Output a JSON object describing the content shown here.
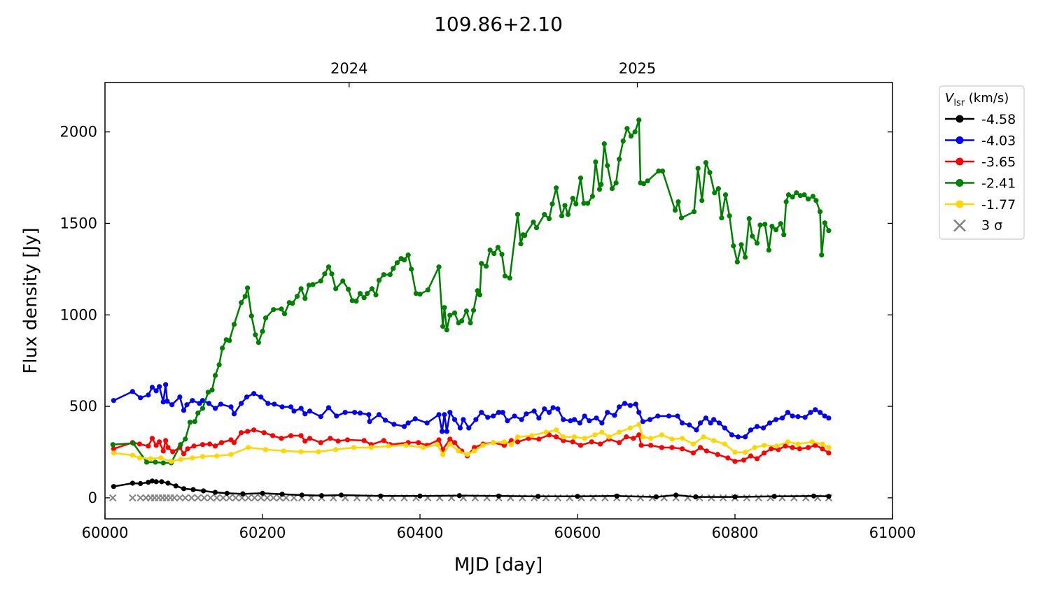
{
  "chart_data": {
    "type": "line",
    "title": "109.86+2.10",
    "xlabel": "MJD [day]",
    "ylabel": "Flux density [Jy]",
    "xlim": [
      60000,
      61000
    ],
    "ylim": [
      -115,
      2270
    ],
    "xticks": [
      60000,
      60200,
      60400,
      60600,
      60800,
      61000
    ],
    "yticks": [
      0,
      500,
      1000,
      1500,
      2000
    ],
    "top_axis": {
      "ticks": [
        {
          "mjd": 60310,
          "label": "2024"
        },
        {
          "mjd": 60676,
          "label": "2025"
        }
      ]
    },
    "grid": false,
    "legend": {
      "placement": "outside-right",
      "title_main": "V",
      "title_sub": "lsr",
      "title_unit": " (km/s)",
      "sigma_label": "3 σ"
    },
    "series": [
      {
        "name": "-4.58",
        "color": "#000000",
        "x": [
          60011,
          60035,
          60045,
          60055,
          60060,
          60065,
          60072,
          60080,
          60090,
          60100,
          60112,
          60125,
          60140,
          60155,
          60175,
          60200,
          60225,
          60250,
          60275,
          60300,
          60350,
          60400,
          60450,
          60500,
          60550,
          60600,
          60650,
          60700,
          60725,
          60750,
          60800,
          60850,
          60900,
          60919
        ],
        "y": [
          62,
          80,
          78,
          85,
          92,
          88,
          88,
          80,
          65,
          50,
          45,
          38,
          30,
          25,
          22,
          25,
          20,
          15,
          12,
          15,
          10,
          10,
          12,
          10,
          8,
          8,
          10,
          5,
          15,
          5,
          5,
          8,
          10,
          8
        ]
      },
      {
        "name": "-4.03",
        "color": "#0000ff",
        "x": [
          60011,
          60035,
          60045,
          60055,
          60060,
          60065,
          60069,
          60074,
          60077,
          60079,
          60085,
          60095,
          60100,
          60104,
          60111,
          60120,
          60124,
          60132,
          60140,
          60147,
          60160,
          60164,
          60173,
          60180,
          60189,
          60198,
          60207,
          60215,
          60225,
          60236,
          60240,
          60249,
          60254,
          60260,
          60274,
          60284,
          60294,
          60305,
          60317,
          60324,
          60335,
          60336,
          60348,
          60356,
          60367,
          60380,
          60385,
          60394,
          60409,
          60424,
          60428,
          60431,
          60434,
          60438,
          60444,
          60451,
          60455,
          60462,
          60471,
          60478,
          60486,
          60493,
          60500,
          60505,
          60511,
          60520,
          60529,
          60535,
          60545,
          60551,
          60558,
          60564,
          60569,
          60575,
          60582,
          60591,
          60596,
          60603,
          60609,
          60615,
          60624,
          60631,
          60638,
          60647,
          60653,
          60660,
          60667,
          60674,
          60678,
          60683,
          60692,
          60702,
          60716,
          60727,
          60733,
          60742,
          60751,
          60756,
          60763,
          60769,
          60773,
          60780,
          60787,
          60796,
          60804,
          60813,
          60820,
          60828,
          60836,
          60844,
          60852,
          60860,
          60867,
          60873,
          60880,
          60889,
          60896,
          60902,
          60908,
          60914,
          60919
        ],
        "y": [
          532,
          581,
          547,
          562,
          604,
          585,
          608,
          524,
          619,
          528,
          509,
          551,
          478,
          509,
          532,
          516,
          532,
          516,
          489,
          512,
          497,
          459,
          516,
          551,
          570,
          551,
          516,
          512,
          497,
          497,
          474,
          489,
          459,
          474,
          444,
          493,
          447,
          467,
          467,
          463,
          455,
          417,
          455,
          424,
          402,
          390,
          409,
          432,
          409,
          455,
          363,
          455,
          363,
          467,
          428,
          382,
          428,
          382,
          428,
          467,
          440,
          447,
          467,
          467,
          421,
          447,
          428,
          459,
          474,
          436,
          486,
          467,
          493,
          486,
          428,
          421,
          428,
          409,
          447,
          421,
          436,
          409,
          467,
          451,
          497,
          516,
          505,
          512,
          467,
          417,
          428,
          447,
          447,
          447,
          409,
          398,
          371,
          409,
          436,
          409,
          428,
          409,
          382,
          344,
          333,
          333,
          371,
          390,
          382,
          409,
          428,
          436,
          467,
          447,
          444,
          440,
          467,
          482,
          467,
          447,
          436
        ]
      },
      {
        "name": "-3.65",
        "color": "#ff0000",
        "x": [
          60011,
          60035,
          60044,
          60055,
          60060,
          60065,
          60069,
          60074,
          60077,
          60080,
          60086,
          60095,
          60100,
          60105,
          60113,
          60124,
          60133,
          60140,
          60148,
          60160,
          60164,
          60173,
          60181,
          60189,
          60202,
          60213,
          60224,
          60236,
          60249,
          60254,
          60260,
          60274,
          60286,
          60296,
          60308,
          60329,
          60338,
          60354,
          60362,
          60385,
          60398,
          60409,
          60424,
          60429,
          60438,
          60444,
          60453,
          60460,
          60469,
          60480,
          60493,
          60507,
          60516,
          60524,
          60538,
          60551,
          60564,
          60573,
          60582,
          60594,
          60604,
          60618,
          60629,
          60640,
          60653,
          60662,
          60671,
          60678,
          60681,
          60693,
          60707,
          60720,
          60733,
          60747,
          60756,
          60764,
          60778,
          60791,
          60800,
          60811,
          60820,
          60828,
          60837,
          60846,
          60855,
          60864,
          60873,
          60882,
          60893,
          60902,
          60911,
          60919
        ],
        "y": [
          268,
          302,
          294,
          283,
          325,
          287,
          306,
          256,
          313,
          275,
          252,
          275,
          241,
          268,
          283,
          291,
          294,
          283,
          302,
          317,
          302,
          356,
          363,
          371,
          356,
          340,
          325,
          340,
          340,
          310,
          325,
          302,
          325,
          310,
          317,
          313,
          291,
          313,
          291,
          302,
          302,
          287,
          317,
          264,
          321,
          302,
          256,
          229,
          275,
          294,
          302,
          287,
          313,
          306,
          325,
          321,
          344,
          333,
          313,
          306,
          287,
          306,
          294,
          321,
          302,
          333,
          325,
          344,
          287,
          287,
          275,
          275,
          268,
          245,
          275,
          256,
          237,
          218,
          199,
          206,
          229,
          214,
          245,
          268,
          264,
          283,
          275,
          268,
          275,
          287,
          268,
          245
        ]
      },
      {
        "name": "-2.41",
        "color": "#008000",
        "x": [
          60010,
          60036,
          60053,
          60064,
          60074,
          60084,
          60096,
          60102,
          60108,
          60114,
          60118,
          60124,
          60131,
          60136,
          60140,
          60145,
          60149,
          60154,
          60158,
          60164,
          60173,
          60178,
          60181,
          60186,
          60191,
          60195,
          60200,
          60204,
          60214,
          60224,
          60228,
          60234,
          60238,
          60244,
          60249,
          60254,
          60259,
          60264,
          60274,
          60279,
          60284,
          60288,
          60293,
          60302,
          60309,
          60314,
          60319,
          60324,
          60329,
          60333,
          60339,
          60344,
          60348,
          60354,
          60362,
          60366,
          60371,
          60376,
          60380,
          60385,
          60389,
          60395,
          60400,
          60410,
          60424,
          60429,
          60431,
          60434,
          60438,
          60444,
          60449,
          60453,
          60459,
          60464,
          60468,
          60473,
          60476,
          60478,
          60484,
          60489,
          60494,
          60499,
          60504,
          60508,
          60514,
          60524,
          60528,
          60531,
          60533,
          60544,
          60548,
          60558,
          60564,
          60568,
          60573,
          60580,
          60584,
          60588,
          60594,
          60598,
          60604,
          60608,
          60613,
          60619,
          60623,
          60628,
          60630,
          60634,
          60638,
          60644,
          60649,
          60653,
          60658,
          60663,
          60668,
          60673,
          60678,
          60680,
          60684,
          60689,
          60703,
          60708,
          60724,
          60728,
          60732,
          60748,
          60753,
          60758,
          60763,
          60768,
          60774,
          60779,
          60783,
          60788,
          60793,
          60798,
          60803,
          60808,
          60813,
          60818,
          60822,
          60828,
          60832,
          60838,
          60843,
          60847,
          60852,
          60858,
          60862,
          60865,
          60868,
          60873,
          60878,
          60883,
          60888,
          60893,
          60899,
          60903,
          60908,
          60910,
          60914,
          60919
        ],
        "y": [
          291,
          298,
          195,
          195,
          191,
          191,
          291,
          321,
          413,
          417,
          463,
          489,
          577,
          589,
          669,
          727,
          818,
          864,
          860,
          948,
          1067,
          1101,
          1147,
          994,
          891,
          849,
          910,
          983,
          1029,
          1032,
          1006,
          1067,
          1063,
          1101,
          1143,
          1090,
          1162,
          1166,
          1185,
          1224,
          1262,
          1224,
          1143,
          1185,
          1140,
          1078,
          1075,
          1117,
          1094,
          1117,
          1143,
          1109,
          1189,
          1220,
          1220,
          1254,
          1285,
          1308,
          1300,
          1327,
          1250,
          1117,
          1113,
          1136,
          1262,
          937,
          1040,
          918,
          998,
          1010,
          956,
          967,
          1021,
          956,
          1025,
          1132,
          1109,
          1281,
          1266,
          1354,
          1335,
          1369,
          1331,
          1212,
          1201,
          1549,
          1388,
          1438,
          1434,
          1507,
          1476,
          1549,
          1526,
          1606,
          1694,
          1541,
          1598,
          1549,
          1637,
          1606,
          1748,
          1610,
          1610,
          1648,
          1836,
          1686,
          1713,
          1935,
          1816,
          1690,
          1721,
          1851,
          1950,
          2019,
          1977,
          2000,
          2065,
          1721,
          1717,
          1732,
          1786,
          1786,
          1572,
          1618,
          1530,
          1564,
          1801,
          1625,
          1832,
          1778,
          1667,
          1690,
          1530,
          1656,
          1541,
          1377,
          1289,
          1384,
          1315,
          1526,
          1430,
          1392,
          1491,
          1495,
          1354,
          1484,
          1465,
          1499,
          1438,
          1618,
          1656,
          1644,
          1667,
          1652,
          1656,
          1633,
          1648,
          1625,
          1564,
          1327,
          1503,
          1461
        ]
      },
      {
        "name": "-1.77",
        "color": "#ffd700",
        "x": [
          60011,
          60035,
          60044,
          60058,
          60071,
          60084,
          60096,
          60111,
          60124,
          60142,
          60160,
          60182,
          60204,
          60227,
          60249,
          60271,
          60293,
          60316,
          60338,
          60360,
          60382,
          60404,
          60422,
          60429,
          60438,
          60449,
          60460,
          60469,
          60480,
          60493,
          60507,
          60516,
          60524,
          60542,
          60560,
          60573,
          60582,
          60596,
          60609,
          60622,
          60631,
          60640,
          60653,
          60667,
          60678,
          60683,
          60693,
          60707,
          60720,
          60733,
          60747,
          60760,
          60773,
          60787,
          60800,
          60813,
          60825,
          60837,
          60853,
          60867,
          60880,
          60898,
          60911,
          60919
        ],
        "y": [
          245,
          233,
          218,
          214,
          218,
          199,
          210,
          218,
          226,
          229,
          237,
          275,
          264,
          256,
          252,
          252,
          264,
          275,
          275,
          283,
          287,
          275,
          291,
          237,
          294,
          256,
          237,
          256,
          287,
          302,
          306,
          291,
          333,
          340,
          359,
          371,
          333,
          333,
          325,
          344,
          359,
          333,
          359,
          382,
          401,
          333,
          325,
          344,
          321,
          325,
          294,
          333,
          313,
          294,
          249,
          249,
          275,
          287,
          283,
          306,
          294,
          306,
          294,
          275
        ]
      }
    ],
    "upper_limits_3sigma": {
      "color": "#808080",
      "x": [
        60010,
        60035,
        60045,
        60052,
        60058,
        60063,
        60068,
        60073,
        60078,
        60083,
        60088,
        60095,
        60102,
        60110,
        60118,
        60126,
        60134,
        60142,
        60150,
        60158,
        60166,
        60174,
        60182,
        60190,
        60198,
        60206,
        60214,
        60222,
        60230,
        60240,
        60250,
        60262,
        60275,
        60290,
        60305,
        60320,
        60335,
        60350,
        60365,
        60380,
        60395,
        60410,
        60425,
        60440,
        60455,
        60470,
        60485,
        60500,
        60515,
        60530,
        60545,
        60560,
        60575,
        60590,
        60605,
        60620,
        60635,
        60650,
        60665,
        60680,
        60695,
        60710,
        60725,
        60740,
        60755,
        60770,
        60785,
        60800,
        60815,
        60830,
        60845,
        60860,
        60875,
        60890,
        60905,
        60919
      ],
      "y": 0
    }
  }
}
